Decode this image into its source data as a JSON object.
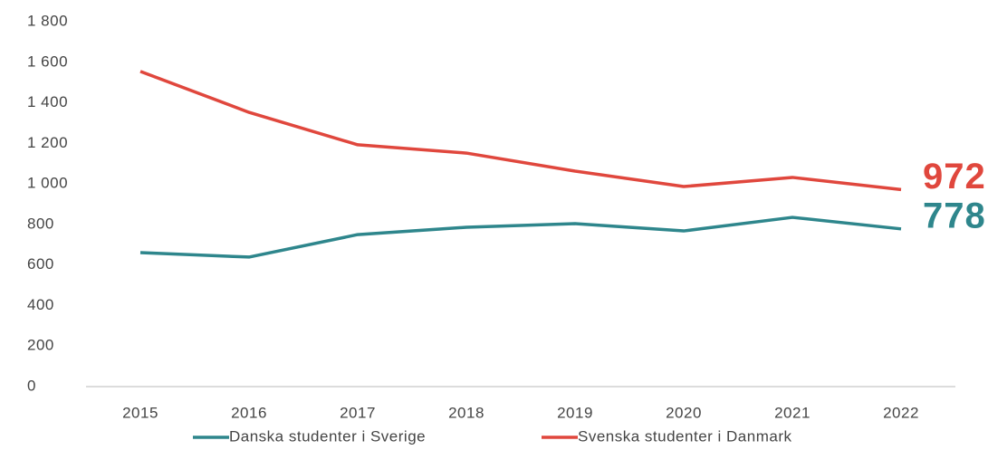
{
  "chart_data": {
    "type": "line",
    "categories": [
      "2015",
      "2016",
      "2017",
      "2018",
      "2019",
      "2020",
      "2021",
      "2022"
    ],
    "series": [
      {
        "name": "Danska studenter i Sverige",
        "color": "#2e868c",
        "values": [
          661,
          639,
          750,
          786,
          804,
          768,
          835,
          778
        ]
      },
      {
        "name": "Svenska studenter i Danmark",
        "color": "#e0473d",
        "values": [
          1555,
          1353,
          1193,
          1152,
          1063,
          987,
          1032,
          972
        ]
      }
    ],
    "ylim": [
      0,
      1800
    ],
    "yticks": [
      0,
      200,
      400,
      600,
      800,
      {
        "value": 1000,
        "label": "1 000"
      },
      {
        "value": 1200,
        "label": "1 200"
      },
      {
        "value": 1400,
        "label": "1 400"
      },
      {
        "value": 1600,
        "label": "1 600"
      },
      {
        "value": 1800,
        "label": "1 800"
      }
    ],
    "grid": false,
    "legend": "bottom"
  }
}
